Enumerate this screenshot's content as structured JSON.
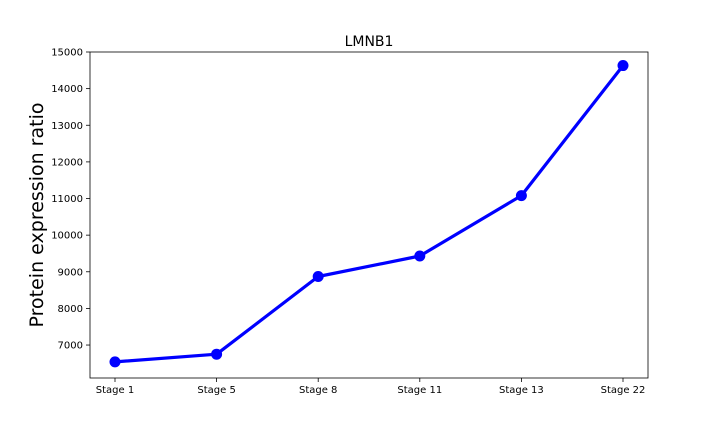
{
  "chart_data": {
    "type": "line",
    "title": "LMNB1",
    "xlabel": "",
    "ylabel": "Protein expression ratio",
    "categories": [
      "Stage 1",
      "Stage 5",
      "Stage 8",
      "Stage 11",
      "Stage 13",
      "Stage 22"
    ],
    "series": [
      {
        "values": [
          6540,
          6750,
          8870,
          9430,
          11080,
          14630
        ]
      }
    ],
    "yticks": [
      "7000",
      "8000",
      "9000",
      "10000",
      "11000",
      "12000",
      "13000",
      "14000",
      "15000"
    ],
    "ylim": [
      6100,
      15000
    ],
    "grid": false,
    "line_color": "#0000ff",
    "marker": "circle"
  }
}
